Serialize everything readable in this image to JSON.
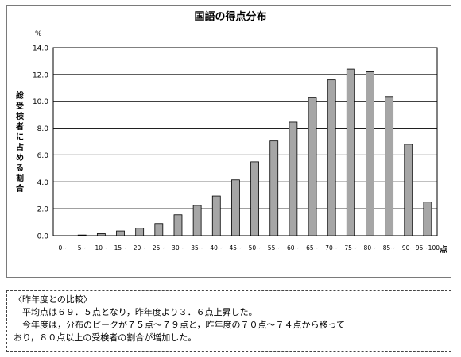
{
  "chart_data": {
    "type": "bar",
    "title": "国語の得点分布",
    "unit_label": "%",
    "ylabel": "総受検者に占める割合",
    "xlabel": "点",
    "ylim": [
      0,
      14
    ],
    "yticks": [
      "0.0",
      "2.0",
      "4.0",
      "6.0",
      "8.0",
      "10.0",
      "12.0",
      "14.0"
    ],
    "categories": [
      "0~",
      "5~",
      "10~",
      "15~",
      "20~",
      "25~",
      "30~",
      "35~",
      "40~",
      "45~",
      "50~",
      "55~",
      "60~",
      "65~",
      "70~",
      "75~",
      "80~",
      "85~",
      "90~",
      "95~100"
    ],
    "values": [
      0.0,
      0.05,
      0.15,
      0.35,
      0.55,
      0.9,
      1.55,
      2.25,
      2.95,
      4.15,
      5.5,
      7.05,
      8.45,
      10.3,
      11.6,
      12.4,
      12.2,
      10.35,
      6.8,
      2.5
    ],
    "grid": true,
    "bar_color": "#a6a6a6"
  },
  "note": {
    "heading": "〈昨年度との比較〉",
    "line1": "平均点は６９．５点となり，昨年度より３．６点上昇した。",
    "line2": "今年度は，分布のピークが７５点～７９点と，昨年度の７０点～７４点から移って",
    "line3": "おり，８０点以上の受検者の割合が増加した。"
  }
}
